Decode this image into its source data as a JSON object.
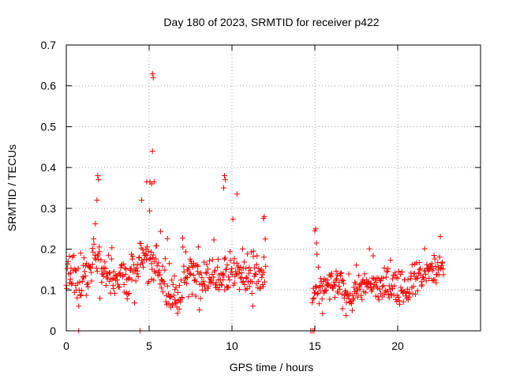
{
  "chart_data": {
    "type": "scatter",
    "title": "Day 180 of 2023, SRMTID for receiver p422",
    "xlabel": "GPS time / hours",
    "ylabel": "SRMTID / TECUs",
    "xlim": [
      0,
      25
    ],
    "ylim": [
      0,
      0.7
    ],
    "xticks": [
      0,
      5,
      10,
      15,
      20
    ],
    "yticks": [
      0,
      0.1,
      0.2,
      0.3,
      0.4,
      0.5,
      0.6,
      0.7
    ],
    "grid": true,
    "marker": "+",
    "color": "#ff0000",
    "series": [
      {
        "name": "SRMTID",
        "segments": [
          {
            "start": 0.0,
            "end": 12.05,
            "step": 0.03,
            "base": 0.135,
            "spread": 0.055
          },
          {
            "start": 14.85,
            "end": 22.8,
            "step": 0.03,
            "base": 0.11,
            "spread": 0.04
          }
        ],
        "x": [
          1.9,
          1.95,
          1.85,
          4.55,
          4.85,
          5.05,
          5.2,
          5.25,
          5.2,
          5.15,
          5.3,
          9.55,
          9.6,
          9.5,
          10.3,
          11.95,
          11.9,
          0.75,
          4.45,
          14.75,
          14.85,
          14.95,
          15.05,
          15.0,
          15.1
        ],
        "y": [
          0.38,
          0.37,
          0.32,
          0.32,
          0.365,
          0.365,
          0.63,
          0.62,
          0.44,
          0.36,
          0.365,
          0.38,
          0.37,
          0.35,
          0.335,
          0.28,
          0.275,
          0.0,
          0.0,
          0.0,
          0.0,
          0.0,
          0.25,
          0.245,
          0.215
        ]
      }
    ]
  }
}
